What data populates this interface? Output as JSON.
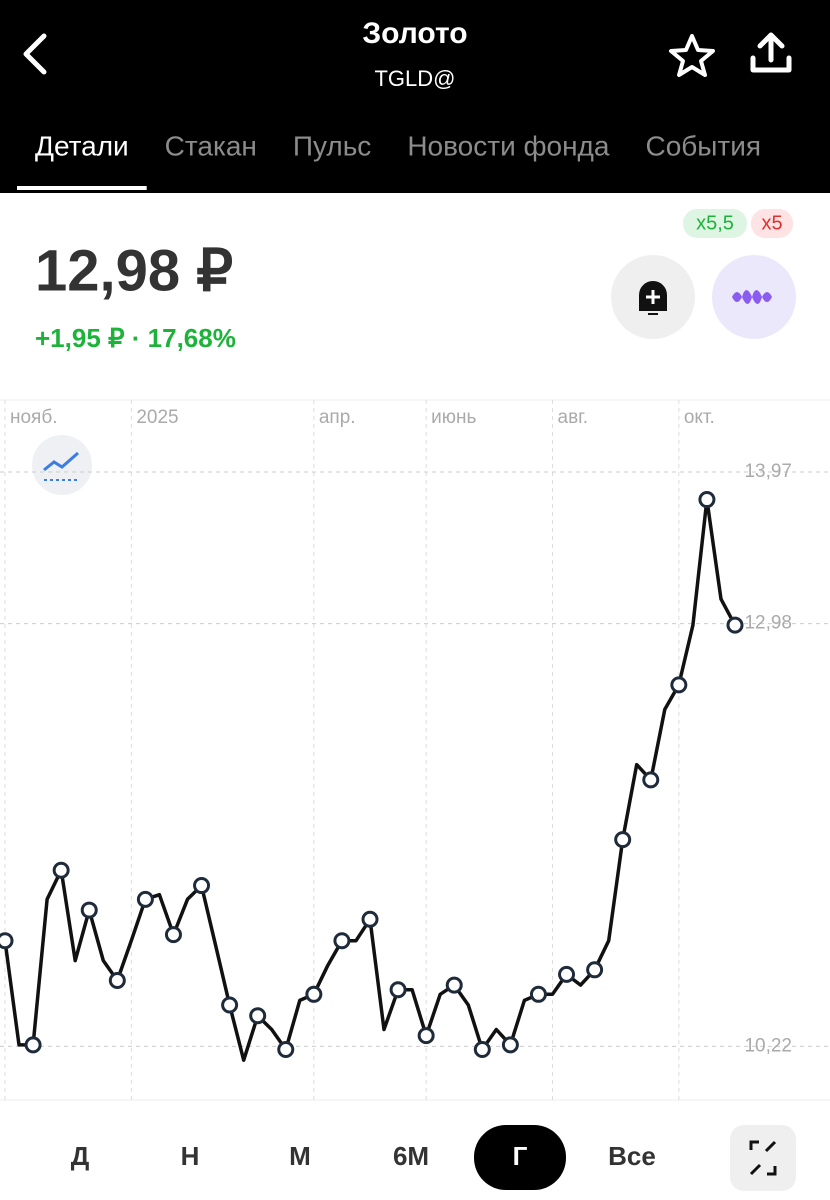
{
  "header": {
    "title": "Золото",
    "subtitle": "TGLD@"
  },
  "tabs": [
    "Детали",
    "Стакан",
    "Пульс",
    "Новости фонда",
    "События"
  ],
  "active_tab": 0,
  "quote": {
    "price": "12,98 ₽",
    "change": "+1,95 ₽ · 17,68%"
  },
  "leverage": {
    "long": "x5,5",
    "short": "x5"
  },
  "chart_data": {
    "type": "line",
    "categories": [
      "нояб.",
      null,
      null,
      null,
      null,
      null,
      null,
      null,
      null,
      "2025",
      null,
      null,
      null,
      null,
      null,
      null,
      null,
      null,
      null,
      null,
      null,
      null,
      "апр.",
      null,
      null,
      null,
      null,
      null,
      null,
      null,
      "июнь",
      null,
      null,
      null,
      null,
      null,
      null,
      null,
      null,
      "авг.",
      null,
      null,
      null,
      null,
      null,
      null,
      null,
      null,
      "окт.",
      null,
      null,
      null,
      null
    ],
    "series": [
      {
        "color": "#111111",
        "values": [
          10.91,
          10.23,
          10.23,
          11.18,
          11.37,
          10.78,
          11.11,
          10.78,
          10.65,
          10.91,
          11.18,
          11.21,
          10.95,
          11.18,
          11.27,
          10.88,
          10.49,
          10.13,
          10.42,
          10.33,
          10.2,
          10.52,
          10.56,
          10.75,
          10.91,
          10.91,
          11.05,
          10.33,
          10.59,
          10.59,
          10.29,
          10.56,
          10.62,
          10.49,
          10.2,
          10.33,
          10.23,
          10.52,
          10.56,
          10.56,
          10.69,
          10.62,
          10.72,
          10.91,
          11.57,
          12.06,
          11.96,
          12.42,
          12.58,
          12.97,
          13.79,
          13.14,
          12.97
        ]
      }
    ],
    "ylim": [
      9.87,
      14.44
    ],
    "yticks": [
      {
        "value": 10.22,
        "label": "10,22"
      },
      {
        "value": 12.98,
        "label": "12,98"
      },
      {
        "value": 13.97,
        "label": "13,97"
      }
    ],
    "grid": true
  },
  "periods": [
    "Д",
    "Н",
    "М",
    "6М",
    "Г",
    "Все"
  ],
  "active_period": 4
}
